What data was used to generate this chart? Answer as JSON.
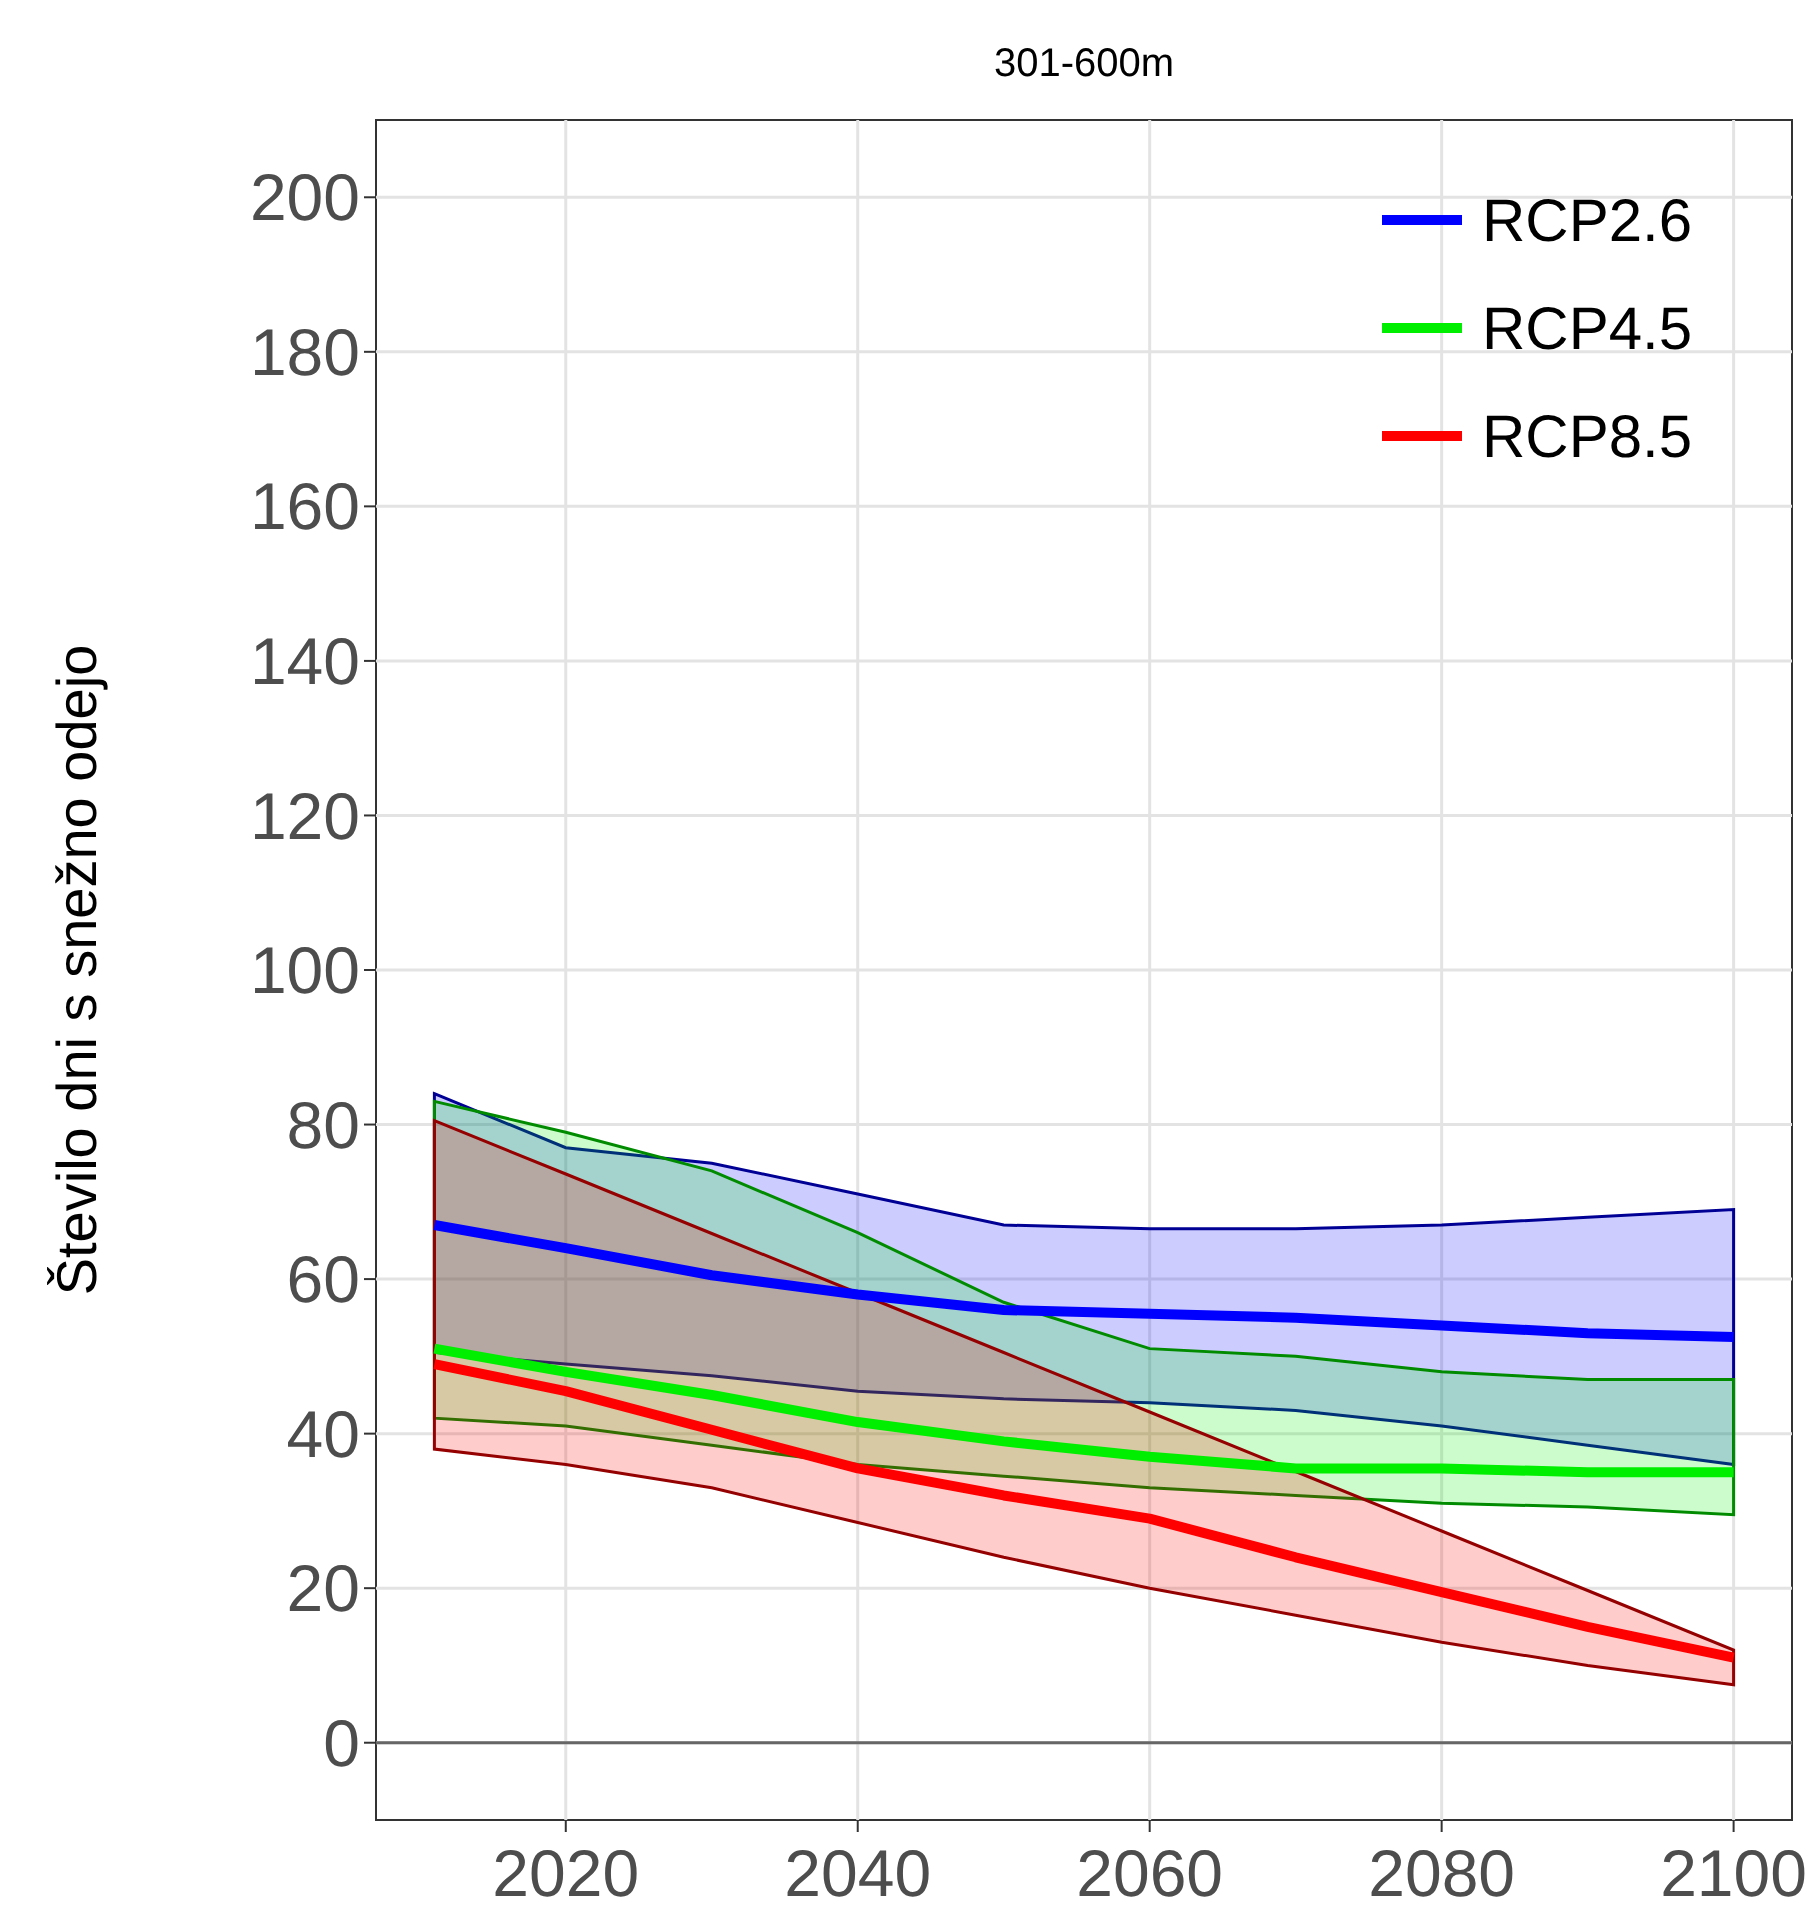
{
  "chart_data": {
    "type": "line",
    "title": "301-600m",
    "ylabel": "Število dni s snežno odejo",
    "xlim": [
      2007,
      2104
    ],
    "xticks": [
      2020,
      2040,
      2060,
      2080,
      2100
    ],
    "ylim": [
      -10,
      210
    ],
    "yticks": [
      0,
      20,
      40,
      60,
      80,
      100,
      120,
      140,
      160,
      180,
      200
    ],
    "grid": true,
    "legend": "top right",
    "marker": "none",
    "line_style": "solid",
    "ref_lines": [
      {
        "axis": "y",
        "value": 0,
        "color": "#666666"
      }
    ],
    "series": [
      {
        "name": "RCP2.6",
        "color": "#0000ff",
        "x": [
          2011,
          2020,
          2030,
          2040,
          2050,
          2060,
          2070,
          2080,
          2090,
          2100
        ],
        "values": [
          67,
          64,
          60.5,
          58,
          56,
          55.5,
          55,
          54,
          53,
          52.5
        ],
        "lower": [
          50.5,
          49,
          47.5,
          45.5,
          44.5,
          44,
          43,
          41,
          38.5,
          36
        ],
        "upper": [
          84,
          77,
          75,
          71,
          67,
          66.5,
          66.5,
          67,
          68,
          69
        ]
      },
      {
        "name": "RCP4.5",
        "color": "#00ee00",
        "x": [
          2011,
          2020,
          2030,
          2040,
          2050,
          2060,
          2070,
          2080,
          2090,
          2100
        ],
        "values": [
          51,
          48,
          45,
          41.5,
          39,
          37,
          35.5,
          35.5,
          35,
          35
        ],
        "lower": [
          42,
          41,
          38.5,
          36,
          34.5,
          33,
          32,
          31,
          30.5,
          29.5
        ],
        "upper": [
          83,
          79,
          74,
          66,
          57,
          51,
          50,
          48,
          47,
          47
        ]
      },
      {
        "name": "RCP8.5",
        "color": "#ff0000",
        "x": [
          2011,
          2020,
          2030,
          2040,
          2050,
          2060,
          2070,
          2080,
          2090,
          2100
        ],
        "values": [
          49,
          45.5,
          40.5,
          35.5,
          32,
          29,
          24,
          19.5,
          15,
          11
        ],
        "lower": [
          38,
          36,
          33,
          28.5,
          24,
          20,
          16.5,
          13,
          10,
          7.5
        ],
        "upper": [
          80.5,
          73.6,
          65.9,
          58.2,
          50.5,
          42.8,
          35.1,
          27.4,
          19.7,
          12
        ]
      }
    ]
  }
}
